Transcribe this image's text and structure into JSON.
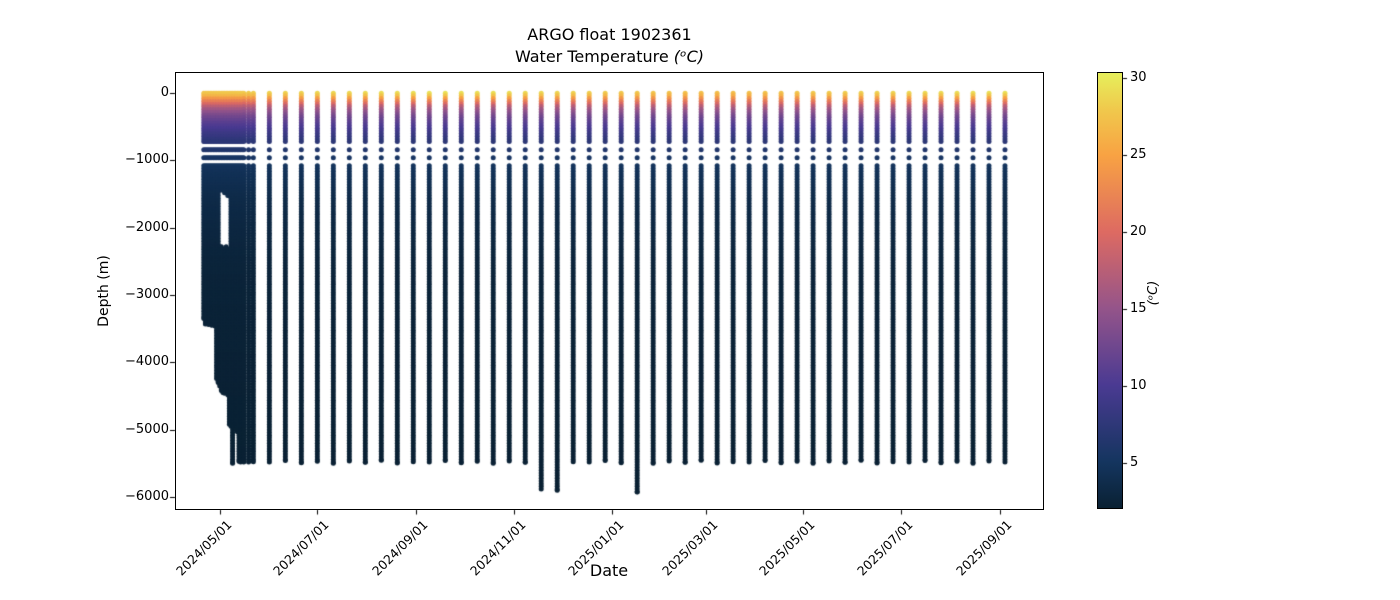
{
  "chart_data": {
    "type": "scatter",
    "title": "ARGO float 1902361",
    "subtitle_prefix": "Water Temperature ",
    "subtitle_math": "(ᵒC)",
    "subtitle_plain": "Water Temperature (°C)",
    "xlabel": "Date",
    "ylabel": "Depth (m)",
    "grid": false,
    "x_tick_labels": [
      "2024/05/01",
      "2024/07/01",
      "2024/09/01",
      "2024/11/01",
      "2025/01/01",
      "2025/03/01",
      "2025/05/01",
      "2025/07/01",
      "2025/09/01"
    ],
    "y_ticks": [
      0,
      -1000,
      -2000,
      -3000,
      -4000,
      -5000,
      -6000
    ],
    "y_tick_labels": [
      "0",
      "−1000",
      "−2000",
      "−3000",
      "−4000",
      "−5000",
      "−6000"
    ],
    "ylim": [
      -6190,
      300
    ],
    "xlim_dates": [
      "2024/04/03",
      "2025/09/28"
    ],
    "colorbar": {
      "label": "(ᵒC)",
      "ticks": [
        5,
        10,
        15,
        20,
        25,
        30
      ],
      "vmin": 2.0,
      "vmax": 30.4,
      "colormap": "thermal",
      "stops": [
        [
          2.0,
          "#0a2133"
        ],
        [
          5,
          "#14355f"
        ],
        [
          10,
          "#4a3a92"
        ],
        [
          15,
          "#94548a"
        ],
        [
          20,
          "#dd6a62"
        ],
        [
          25,
          "#f8a243"
        ],
        [
          28,
          "#f0c84c"
        ],
        [
          30.4,
          "#e6ef5b"
        ]
      ]
    },
    "temperature_vs_depth": [
      [
        0,
        28.6
      ],
      [
        30,
        27.8
      ],
      [
        60,
        26.0
      ],
      [
        100,
        23.2
      ],
      [
        150,
        20.6
      ],
      [
        200,
        17.6
      ],
      [
        250,
        15.6
      ],
      [
        300,
        14.0
      ],
      [
        350,
        12.8
      ],
      [
        400,
        11.8
      ],
      [
        450,
        10.9
      ],
      [
        500,
        10.1
      ],
      [
        600,
        8.7
      ],
      [
        700,
        7.5
      ],
      [
        800,
        6.5
      ],
      [
        900,
        5.7
      ],
      [
        1000,
        5.2
      ],
      [
        1200,
        4.4
      ],
      [
        1400,
        3.9
      ],
      [
        1600,
        3.5
      ],
      [
        2000,
        3.0
      ],
      [
        2500,
        2.6
      ],
      [
        3000,
        2.4
      ],
      [
        4000,
        2.2
      ],
      [
        5000,
        2.1
      ],
      [
        6000,
        2.0
      ]
    ],
    "sparse_sampling_depth_range": [
      -700,
      -1100
    ],
    "profiles": [
      {
        "date": "2024-04-21",
        "bottom": -3350,
        "sst": 27.9
      },
      {
        "date": "2024-04-22",
        "bottom": -3430,
        "sst": 27.9
      },
      {
        "date": "2024-04-23",
        "bottom": -3400,
        "sst": 27.9
      },
      {
        "date": "2024-04-24",
        "bottom": -3440,
        "sst": 27.9
      },
      {
        "date": "2024-04-25",
        "bottom": -3420,
        "sst": 27.9
      },
      {
        "date": "2024-04-26",
        "bottom": -3450,
        "sst": 27.9
      },
      {
        "date": "2024-04-27",
        "bottom": -3440,
        "sst": 27.9
      },
      {
        "date": "2024-04-28",
        "bottom": -3460,
        "sst": 27.9
      },
      {
        "date": "2024-04-29",
        "bottom": -4240,
        "sst": 27.9
      },
      {
        "date": "2024-04-30",
        "bottom": -4300,
        "sst": 27.9
      },
      {
        "date": "2024-05-01",
        "bottom": -4350,
        "sst": 28.0,
        "gap": [
          -1480,
          -2280
        ]
      },
      {
        "date": "2024-05-02",
        "bottom": -4420,
        "sst": 28.0,
        "gap": [
          -1480,
          -2280
        ]
      },
      {
        "date": "2024-05-03",
        "bottom": -4450,
        "sst": 28.0,
        "gap": [
          -1470,
          -2290
        ]
      },
      {
        "date": "2024-05-04",
        "bottom": -4460,
        "sst": 28.0,
        "gap": [
          -1500,
          -2300
        ]
      },
      {
        "date": "2024-05-05",
        "bottom": -4450,
        "sst": 28.0,
        "gap": [
          -1480,
          -2280
        ]
      },
      {
        "date": "2024-05-06",
        "bottom": -4480,
        "sst": 28.0,
        "gap": [
          -1550,
          -2300
        ]
      },
      {
        "date": "2024-05-07",
        "bottom": -4920,
        "sst": 28.0,
        "gap": [
          -1550,
          -2300
        ]
      },
      {
        "date": "2024-05-08",
        "bottom": -4950,
        "sst": 28.0
      },
      {
        "date": "2024-05-09",
        "bottom": -5500,
        "sst": 28.0
      },
      {
        "date": "2024-05-10",
        "bottom": -4960,
        "sst": 28.0
      },
      {
        "date": "2024-05-11",
        "bottom": -4990,
        "sst": 28.0
      },
      {
        "date": "2024-05-12",
        "bottom": -5030,
        "sst": 28.0
      },
      {
        "date": "2024-05-13",
        "bottom": -5470,
        "sst": 28.1
      },
      {
        "date": "2024-05-14",
        "bottom": -5480,
        "sst": 28.1
      },
      {
        "date": "2024-05-15",
        "bottom": -5470,
        "sst": 28.1
      },
      {
        "date": "2024-05-16",
        "bottom": -5480,
        "sst": 28.1
      },
      {
        "date": "2024-05-19",
        "bottom": -5480,
        "sst": 28.2
      },
      {
        "date": "2024-05-22",
        "bottom": -5475,
        "sst": 28.3
      },
      {
        "date": "2024-06-01",
        "bottom": -5480,
        "sst": 28.6
      },
      {
        "date": "2024-06-11",
        "bottom": -5460,
        "sst": 28.6
      },
      {
        "date": "2024-06-21",
        "bottom": -5490,
        "sst": 28.7
      },
      {
        "date": "2024-07-01",
        "bottom": -5470,
        "sst": 28.9
      },
      {
        "date": "2024-07-11",
        "bottom": -5500,
        "sst": 28.9
      },
      {
        "date": "2024-07-21",
        "bottom": -5465,
        "sst": 29.0
      },
      {
        "date": "2024-07-31",
        "bottom": -5485,
        "sst": 29.1
      },
      {
        "date": "2024-08-10",
        "bottom": -5455,
        "sst": 29.3
      },
      {
        "date": "2024-08-20",
        "bottom": -5495,
        "sst": 29.3
      },
      {
        "date": "2024-08-30",
        "bottom": -5475,
        "sst": 29.4
      },
      {
        "date": "2024-09-09",
        "bottom": -5480,
        "sst": 29.6
      },
      {
        "date": "2024-09-19",
        "bottom": -5460,
        "sst": 29.6
      },
      {
        "date": "2024-09-29",
        "bottom": -5490,
        "sst": 29.5
      },
      {
        "date": "2024-10-09",
        "bottom": -5470,
        "sst": 29.4
      },
      {
        "date": "2024-10-19",
        "bottom": -5500,
        "sst": 29.4
      },
      {
        "date": "2024-10-29",
        "bottom": -5465,
        "sst": 29.2
      },
      {
        "date": "2024-11-08",
        "bottom": -5485,
        "sst": 29.0
      },
      {
        "date": "2024-11-18",
        "bottom": -5880,
        "sst": 29.0
      },
      {
        "date": "2024-11-28",
        "bottom": -5900,
        "sst": 28.8
      },
      {
        "date": "2024-12-08",
        "bottom": -5475,
        "sst": 28.6
      },
      {
        "date": "2024-12-18",
        "bottom": -5480,
        "sst": 28.4
      },
      {
        "date": "2024-12-28",
        "bottom": -5460,
        "sst": 28.2
      },
      {
        "date": "2025-01-07",
        "bottom": -5490,
        "sst": 28.0
      },
      {
        "date": "2025-01-17",
        "bottom": -5925,
        "sst": 27.9
      },
      {
        "date": "2025-01-27",
        "bottom": -5500,
        "sst": 27.7
      },
      {
        "date": "2025-02-06",
        "bottom": -5465,
        "sst": 27.5
      },
      {
        "date": "2025-02-16",
        "bottom": -5485,
        "sst": 27.4
      },
      {
        "date": "2025-02-26",
        "bottom": -5455,
        "sst": 27.3
      },
      {
        "date": "2025-03-08",
        "bottom": -5495,
        "sst": 27.2
      },
      {
        "date": "2025-03-18",
        "bottom": -5475,
        "sst": 27.2
      },
      {
        "date": "2025-03-28",
        "bottom": -5480,
        "sst": 27.3
      },
      {
        "date": "2025-04-07",
        "bottom": -5460,
        "sst": 27.5
      },
      {
        "date": "2025-04-17",
        "bottom": -5490,
        "sst": 27.6
      },
      {
        "date": "2025-04-27",
        "bottom": -5470,
        "sst": 27.8
      },
      {
        "date": "2025-05-07",
        "bottom": -5500,
        "sst": 28.0
      },
      {
        "date": "2025-05-17",
        "bottom": -5465,
        "sst": 28.1
      },
      {
        "date": "2025-05-27",
        "bottom": -5485,
        "sst": 28.3
      },
      {
        "date": "2025-06-06",
        "bottom": -5455,
        "sst": 28.5
      },
      {
        "date": "2025-06-16",
        "bottom": -5495,
        "sst": 28.6
      },
      {
        "date": "2025-06-26",
        "bottom": -5475,
        "sst": 28.7
      },
      {
        "date": "2025-07-06",
        "bottom": -5480,
        "sst": 28.9
      },
      {
        "date": "2025-07-16",
        "bottom": -5460,
        "sst": 29.0
      },
      {
        "date": "2025-07-26",
        "bottom": -5490,
        "sst": 29.1
      },
      {
        "date": "2025-08-05",
        "bottom": -5470,
        "sst": 29.3
      },
      {
        "date": "2025-08-15",
        "bottom": -5500,
        "sst": 29.3
      },
      {
        "date": "2025-08-25",
        "bottom": -5465,
        "sst": 29.4
      },
      {
        "date": "2025-09-04",
        "bottom": -5480,
        "sst": 29.5
      }
    ]
  }
}
